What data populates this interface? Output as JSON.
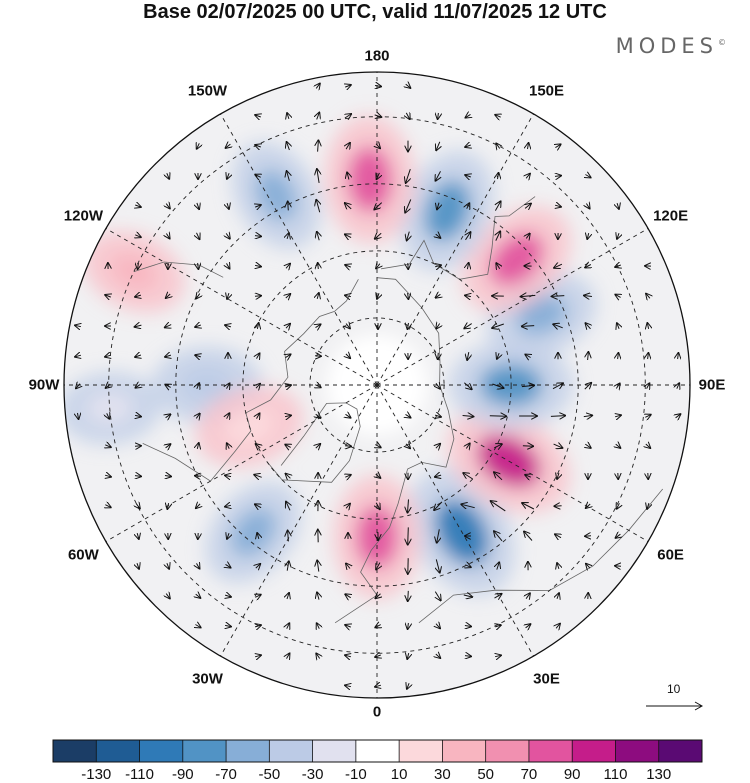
{
  "title": "Base 02/07/2025 00 UTC, valid 11/07/2025 12 UTC",
  "brand": "MODES",
  "brand_mark": "©",
  "longitude_labels": [
    "180",
    "150E",
    "120E",
    "90E",
    "60E",
    "30E",
    "0",
    "30W",
    "60W",
    "90W",
    "120W",
    "150W"
  ],
  "reference_vector": {
    "label": "10",
    "value": 10
  },
  "colorbar": {
    "tick_labels": [
      "-130",
      "-110",
      "-90",
      "-70",
      "-50",
      "-30",
      "-10",
      "10",
      "30",
      "50",
      "70",
      "90",
      "110",
      "130"
    ],
    "colors": [
      "#1b3d66",
      "#1f5c94",
      "#2f7ab7",
      "#5193c5",
      "#87aed7",
      "#bccbe6",
      "#e1e1ef",
      "#ffffff",
      "#fcd9dc",
      "#f8b5c0",
      "#f190b0",
      "#e2549f",
      "#c51d8a",
      "#8d0c7f",
      "#5a0a73"
    ]
  },
  "anomaly_centers": [
    {
      "lon": 30,
      "lat": 52,
      "value": -110,
      "color": "#2f7ab7"
    },
    {
      "lon": 0,
      "lat": 56,
      "value": 80,
      "color": "#e2549f"
    },
    {
      "lon": -40,
      "lat": 47,
      "value": -50,
      "color": "#87aed7"
    },
    {
      "lon": 60,
      "lat": 56,
      "value": 100,
      "color": "#c51d8a"
    },
    {
      "lon": 90,
      "lat": 60,
      "value": -80,
      "color": "#5193c5"
    },
    {
      "lon": 113,
      "lat": 50,
      "value": -50,
      "color": "#87aed7"
    },
    {
      "lon": 132,
      "lat": 48,
      "value": 80,
      "color": "#e2549f"
    },
    {
      "lon": 158,
      "lat": 48,
      "value": -80,
      "color": "#5193c5"
    },
    {
      "lon": -178,
      "lat": 44,
      "value": 90,
      "color": "#e2549f"
    },
    {
      "lon": -152,
      "lat": 42,
      "value": -50,
      "color": "#87aed7"
    },
    {
      "lon": -115,
      "lat": 30,
      "value": 30,
      "color": "#f8b5c0"
    },
    {
      "lon": -90,
      "lat": 52,
      "value": -40,
      "color": "#bccbe6"
    },
    {
      "lon": -72,
      "lat": 60,
      "value": 40,
      "color": "#fcd9dc"
    },
    {
      "lon": -85,
      "lat": 30,
      "value": -20,
      "color": "#e1e1ef"
    }
  ]
}
